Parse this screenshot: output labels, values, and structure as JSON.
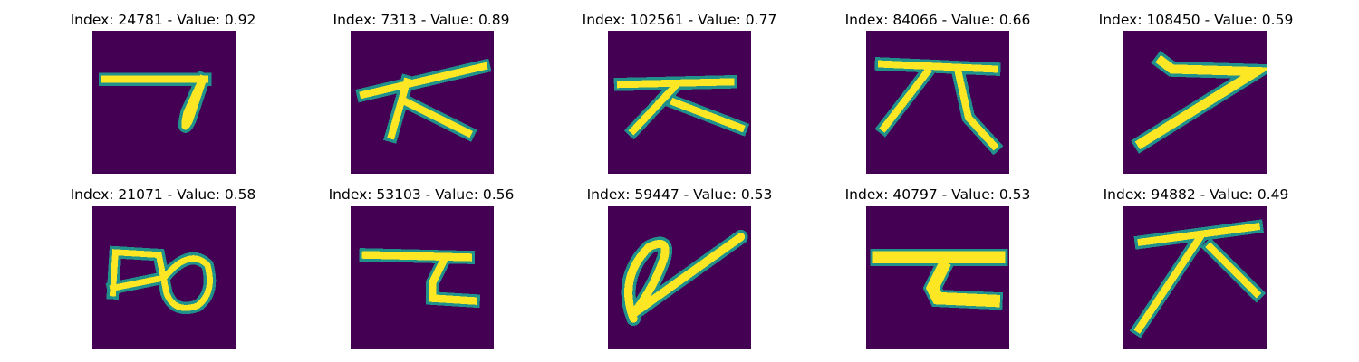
{
  "colors": {
    "background": "#440154",
    "stroke_edge": "#21918c",
    "stroke_mid": "#5ec962",
    "stroke_core": "#fde725"
  },
  "panels": [
    {
      "index": "24781",
      "value": "0.92",
      "title": "Index: 24781 - Value: 0.92"
    },
    {
      "index": "7313",
      "value": "0.89",
      "title": "Index: 7313 - Value: 0.89"
    },
    {
      "index": "102561",
      "value": "0.77",
      "title": "Index: 102561 - Value: 0.77"
    },
    {
      "index": "84066",
      "value": "0.66",
      "title": "Index: 84066 - Value: 0.66"
    },
    {
      "index": "108450",
      "value": "0.59",
      "title": "Index: 108450 - Value: 0.59"
    },
    {
      "index": "21071",
      "value": "0.58",
      "title": "Index: 21071 - Value: 0.58"
    },
    {
      "index": "53103",
      "value": "0.56",
      "title": "Index: 53103 - Value: 0.56"
    },
    {
      "index": "59447",
      "value": "0.53",
      "title": "Index: 59447 - Value: 0.53"
    },
    {
      "index": "40797",
      "value": "0.53",
      "title": "Index: 40797 - Value: 0.53"
    },
    {
      "index": "94882",
      "value": "0.49",
      "title": "Index: 94882 - Value: 0.49"
    }
  ]
}
